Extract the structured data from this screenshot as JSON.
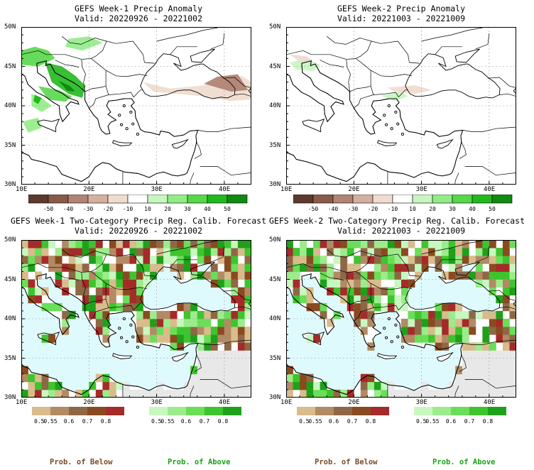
{
  "panels": [
    {
      "title": "GEFS Week-1 Precip Anomaly",
      "valid": "Valid: 20220926 - 20221002",
      "kind": "anomaly"
    },
    {
      "title": "GEFS Week-2 Precip Anomaly",
      "valid": "Valid: 20221003 - 20221009",
      "kind": "anomaly"
    },
    {
      "title": "GEFS Week-1 Two-Category Precip Reg. Calib. Forecast",
      "valid": "Valid: 20220926 - 20221002",
      "kind": "probability"
    },
    {
      "title": "GEFS Week-2 Two-Category Precip Reg. Calib. Forecast",
      "valid": "Valid: 20221003 - 20221009",
      "kind": "probability"
    }
  ],
  "axes": {
    "lat_labels": [
      "50N",
      "45N",
      "40N",
      "35N",
      "30N"
    ],
    "lon_labels": [
      "10E",
      "20E",
      "30E",
      "40E"
    ],
    "lat_range": [
      30,
      50
    ],
    "lon_range": [
      10,
      44
    ]
  },
  "anomaly_colorbar": {
    "labels": [
      "-50",
      "-40",
      "-30",
      "-20",
      "-10",
      "10",
      "20",
      "30",
      "40",
      "50"
    ],
    "colors": [
      "#5e3a2e",
      "#8a5a48",
      "#b08474",
      "#d3b09f",
      "#efdcd1",
      "#ffffff",
      "#c8f5c0",
      "#92ec86",
      "#56d84a",
      "#22b81e",
      "#108a10"
    ]
  },
  "prob_colorbar_below": {
    "labels": [
      "0.5",
      "0.55",
      "0.6",
      "0.7",
      "0.8"
    ],
    "colors": [
      "#d9bc8c",
      "#b28a64",
      "#8e6846",
      "#8a4a20",
      "#a52a2a"
    ],
    "caption": "Prob. of Below",
    "caption_color": "#7a4a26"
  },
  "prob_colorbar_above": {
    "labels": [
      "0.5",
      "0.55",
      "0.6",
      "0.7",
      "0.8"
    ],
    "colors": [
      "#c8f7c0",
      "#9cec8c",
      "#6ade58",
      "#3ec42e",
      "#1ea01a"
    ],
    "caption": "Prob. of Above",
    "caption_color": "#19a319"
  },
  "map_colors": {
    "sea": "#dffafd",
    "no_data_land": "#e8e8e8",
    "boundary": "#000000",
    "grid": "#9a9a9a"
  }
}
